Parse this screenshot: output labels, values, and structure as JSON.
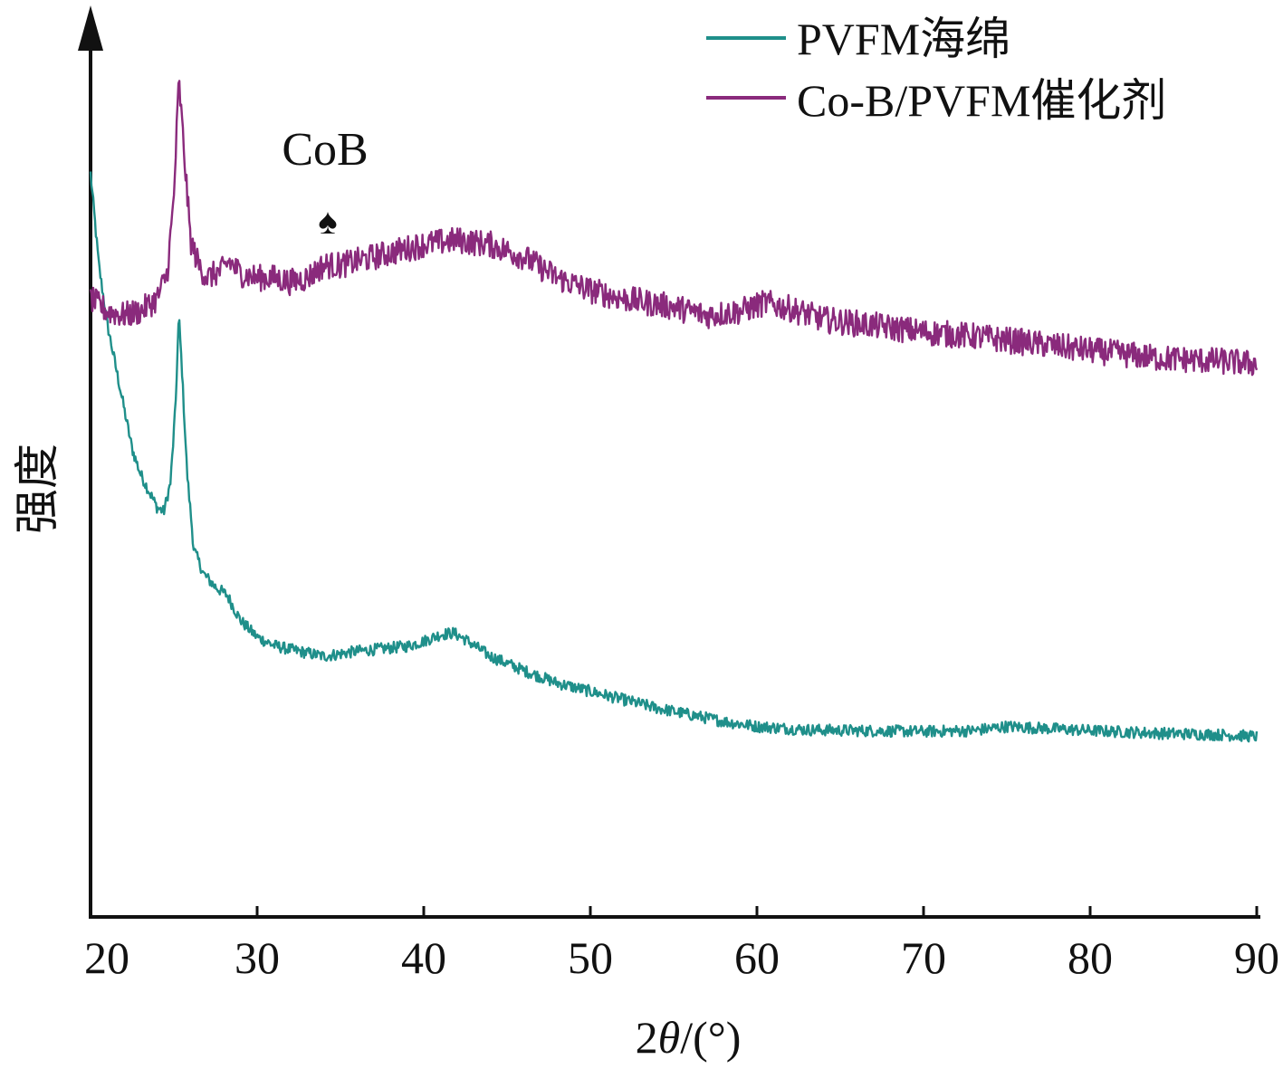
{
  "chart_data": {
    "type": "line",
    "title": "",
    "xlabel_prefix": "2",
    "xlabel_theta": "θ",
    "xlabel_suffix": "/(°)",
    "ylabel": "强度",
    "xlim": [
      20,
      90
    ],
    "xticks": [
      20,
      30,
      40,
      50,
      60,
      70,
      80,
      90
    ],
    "ylim": [
      0,
      100
    ],
    "yticks_shown": false,
    "grid": false,
    "legend_position": "top-right",
    "annotation": {
      "label": "CoB",
      "marker": "♠",
      "x": 34.3
    },
    "series": [
      {
        "name": "PVFM海绵",
        "color": "#1f8f8a",
        "noise": 0.7,
        "points": [
          [
            20.0,
            89
          ],
          [
            20.5,
            78
          ],
          [
            21.0,
            71
          ],
          [
            21.5,
            66
          ],
          [
            22.0,
            61
          ],
          [
            22.5,
            56
          ],
          [
            23.0,
            53
          ],
          [
            23.5,
            51
          ],
          [
            24.0,
            49
          ],
          [
            24.4,
            48.5
          ],
          [
            24.8,
            52
          ],
          [
            25.1,
            61
          ],
          [
            25.3,
            72
          ],
          [
            25.5,
            65
          ],
          [
            25.8,
            53
          ],
          [
            26.2,
            44
          ],
          [
            26.8,
            41
          ],
          [
            27.5,
            39.5
          ],
          [
            28.2,
            38.5
          ],
          [
            29.0,
            35.5
          ],
          [
            30.0,
            33.5
          ],
          [
            31.0,
            32.5
          ],
          [
            32.0,
            32
          ],
          [
            33.0,
            31.6
          ],
          [
            34.0,
            31.2
          ],
          [
            35.0,
            31.5
          ],
          [
            36.0,
            31.8
          ],
          [
            37.0,
            32
          ],
          [
            38.0,
            32.2
          ],
          [
            39.0,
            32.4
          ],
          [
            40.0,
            33
          ],
          [
            41.0,
            33.8
          ],
          [
            41.8,
            34
          ],
          [
            42.5,
            33.2
          ],
          [
            44.0,
            31.2
          ],
          [
            46.0,
            29.5
          ],
          [
            48.0,
            28
          ],
          [
            50.0,
            27
          ],
          [
            52.0,
            26
          ],
          [
            54.0,
            25
          ],
          [
            56.0,
            24.2
          ],
          [
            58.0,
            23.4
          ],
          [
            60.0,
            22.8
          ],
          [
            63.0,
            22.4
          ],
          [
            66.0,
            22.3
          ],
          [
            70.0,
            22.2
          ],
          [
            73.0,
            22.3
          ],
          [
            75.0,
            22.8
          ],
          [
            77.0,
            22.6
          ],
          [
            80.0,
            22.3
          ],
          [
            84.0,
            22
          ],
          [
            88.0,
            21.8
          ],
          [
            90.0,
            21.6
          ]
        ]
      },
      {
        "name": "Co-B/PVFM催化剂",
        "color": "#8a2a7c",
        "noise": 1.6,
        "points": [
          [
            20.0,
            74
          ],
          [
            21.0,
            72.5
          ],
          [
            22.0,
            72
          ],
          [
            23.0,
            72.5
          ],
          [
            24.0,
            74
          ],
          [
            24.6,
            77
          ],
          [
            25.0,
            86
          ],
          [
            25.3,
            100
          ],
          [
            25.6,
            92
          ],
          [
            26.0,
            81
          ],
          [
            26.5,
            78
          ],
          [
            27.0,
            76.5
          ],
          [
            28.0,
            77.5
          ],
          [
            28.3,
            78.5
          ],
          [
            29.0,
            77
          ],
          [
            30.0,
            76.5
          ],
          [
            31.0,
            76.5
          ],
          [
            32.0,
            76
          ],
          [
            33.0,
            76.5
          ],
          [
            34.0,
            78
          ],
          [
            35.0,
            78
          ],
          [
            36.0,
            78.5
          ],
          [
            38.0,
            79.5
          ],
          [
            40.0,
            80.5
          ],
          [
            42.0,
            81
          ],
          [
            44.0,
            80.5
          ],
          [
            46.0,
            79
          ],
          [
            48.0,
            76.5
          ],
          [
            50.0,
            75
          ],
          [
            52.0,
            74
          ],
          [
            55.0,
            73
          ],
          [
            57.0,
            72
          ],
          [
            59.0,
            72.5
          ],
          [
            60.5,
            73.5
          ],
          [
            62.0,
            72.8
          ],
          [
            64.0,
            71.5
          ],
          [
            67.0,
            70.8
          ],
          [
            70.0,
            70
          ],
          [
            73.0,
            69.5
          ],
          [
            76.0,
            68.8
          ],
          [
            80.0,
            67.8
          ],
          [
            84.0,
            66.9
          ],
          [
            88.0,
            66.5
          ],
          [
            90.0,
            66.2
          ]
        ]
      }
    ]
  }
}
